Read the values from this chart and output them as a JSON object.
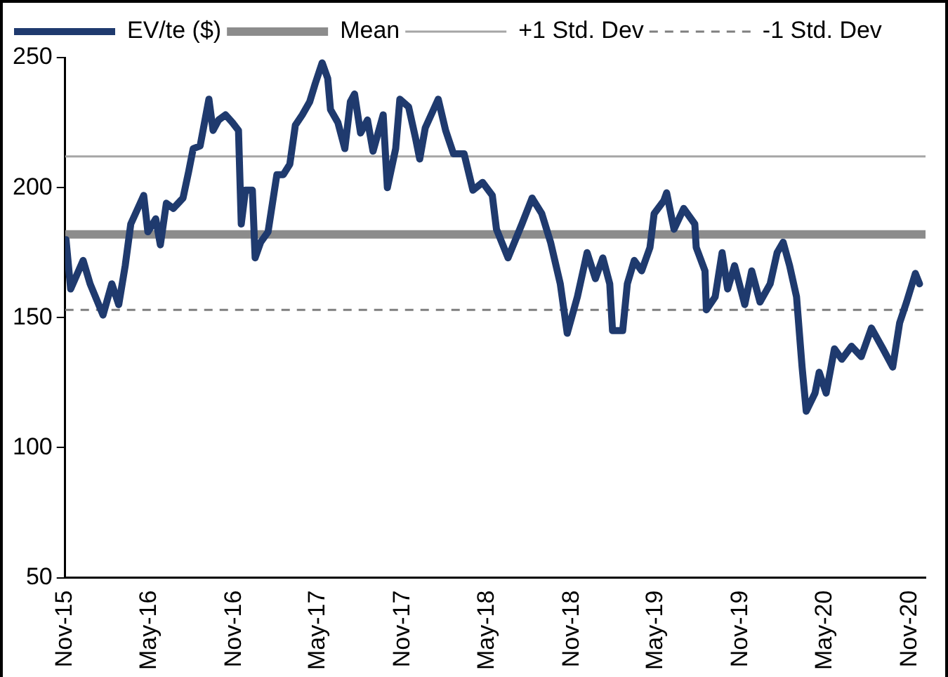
{
  "chart_data": {
    "type": "line",
    "x": [
      "2015-11-03",
      "2015-11-13",
      "2015-12-10",
      "2015-12-25",
      "2016-01-22",
      "2016-02-10",
      "2016-02-25",
      "2016-03-10",
      "2016-03-22",
      "2016-04-19",
      "2016-04-28",
      "2016-05-15",
      "2016-05-25",
      "2016-06-07",
      "2016-06-22",
      "2016-07-13",
      "2016-07-25",
      "2016-08-04",
      "2016-08-19",
      "2016-09-07",
      "2016-09-16",
      "2016-09-28",
      "2016-10-13",
      "2016-10-28",
      "2016-11-10",
      "2016-11-16",
      "2016-11-25",
      "2016-12-10",
      "2016-12-16",
      "2016-12-28",
      "2017-01-13",
      "2017-02-01",
      "2017-02-15",
      "2017-03-01",
      "2017-03-13",
      "2017-03-28",
      "2017-04-13",
      "2017-04-25",
      "2017-05-10",
      "2017-05-22",
      "2017-05-28",
      "2017-06-13",
      "2017-06-28",
      "2017-07-10",
      "2017-07-19",
      "2017-08-01",
      "2017-08-16",
      "2017-08-28",
      "2017-09-19",
      "2017-09-28",
      "2017-10-16",
      "2017-10-25",
      "2017-11-13",
      "2017-11-28",
      "2017-12-07",
      "2017-12-19",
      "2018-01-16",
      "2018-02-01",
      "2018-02-18",
      "2018-03-13",
      "2018-04-01",
      "2018-04-22",
      "2018-05-13",
      "2018-05-22",
      "2018-06-16",
      "2018-07-16",
      "2018-08-07",
      "2018-08-28",
      "2018-09-16",
      "2018-10-07",
      "2018-10-22",
      "2018-11-13",
      "2018-12-04",
      "2018-12-22",
      "2019-01-07",
      "2019-01-22",
      "2019-01-28",
      "2019-02-19",
      "2019-03-01",
      "2019-03-16",
      "2019-04-01",
      "2019-04-19",
      "2019-04-28",
      "2019-05-19",
      "2019-05-25",
      "2019-06-10",
      "2019-07-01",
      "2019-07-25",
      "2019-07-28",
      "2019-08-16",
      "2019-08-19",
      "2019-09-07",
      "2019-09-22",
      "2019-10-04",
      "2019-10-19",
      "2019-11-10",
      "2019-11-25",
      "2019-12-13",
      "2020-01-04",
      "2020-01-19",
      "2020-02-01",
      "2020-02-15",
      "2020-03-01",
      "2020-03-13",
      "2020-03-22",
      "2020-04-10",
      "2020-04-19",
      "2020-05-04",
      "2020-05-22",
      "2020-06-07",
      "2020-06-28",
      "2020-07-19",
      "2020-08-10",
      "2020-09-04",
      "2020-09-25",
      "2020-10-10",
      "2020-10-25",
      "2020-11-13",
      "2020-11-22"
    ],
    "series": [
      {
        "name": "EV/te ($)",
        "color": "#1f3a6e",
        "values": [
          180,
          161,
          172,
          163,
          151,
          163,
          155,
          170,
          186,
          197,
          183,
          188,
          178,
          194,
          192,
          196,
          206,
          215,
          216,
          234,
          222,
          226,
          228,
          225,
          222,
          186,
          199,
          199,
          173,
          179,
          183,
          205,
          205,
          209,
          224,
          228,
          233,
          240,
          248,
          242,
          230,
          225,
          215,
          233,
          236,
          221,
          226,
          214,
          228,
          200,
          215,
          234,
          231,
          219,
          211,
          223,
          234,
          222,
          213,
          213,
          199,
          202,
          197,
          184,
          173,
          186,
          196,
          190,
          179,
          163,
          144,
          158,
          175,
          165,
          173,
          163,
          145,
          145,
          163,
          172,
          168,
          177,
          190,
          195,
          198,
          184,
          192,
          186,
          177,
          168,
          153,
          158,
          175,
          161,
          170,
          155,
          168,
          156,
          163,
          175,
          179,
          170,
          158,
          131,
          114,
          121,
          129,
          121,
          138,
          134,
          139,
          135,
          146,
          138,
          131,
          148,
          156,
          167,
          163
        ]
      }
    ],
    "ref_lines": [
      {
        "axis": "y",
        "value": 182,
        "label": "Mean",
        "color": "#8c8c8c",
        "line_style": "solid"
      },
      {
        "axis": "y",
        "value": 212,
        "label": "+1 Std. Dev",
        "color": "#a6a6a6",
        "line_style": "solid"
      },
      {
        "axis": "y",
        "value": 153,
        "label": "-1 Std. Dev",
        "color": "#7f7f7f",
        "line_style": "dashed"
      }
    ],
    "xlim": [
      "2015-11-01",
      "2020-12-05"
    ],
    "xticks": [
      {
        "value": "2015-11-01",
        "label": "Nov-15"
      },
      {
        "value": "2016-05-01",
        "label": "May-16"
      },
      {
        "value": "2016-11-01",
        "label": "Nov-16"
      },
      {
        "value": "2017-05-01",
        "label": "May-17"
      },
      {
        "value": "2017-11-01",
        "label": "Nov-17"
      },
      {
        "value": "2018-05-01",
        "label": "May-18"
      },
      {
        "value": "2018-11-01",
        "label": "Nov-18"
      },
      {
        "value": "2019-05-01",
        "label": "May-19"
      },
      {
        "value": "2019-11-01",
        "label": "Nov-19"
      },
      {
        "value": "2020-05-01",
        "label": "May-20"
      },
      {
        "value": "2020-11-01",
        "label": "Nov-20"
      }
    ],
    "ylim": [
      50,
      250
    ],
    "yticks": [
      50,
      100,
      150,
      200,
      250
    ],
    "grid": false,
    "legend": "top",
    "marker": "none",
    "line_style": "solid"
  }
}
